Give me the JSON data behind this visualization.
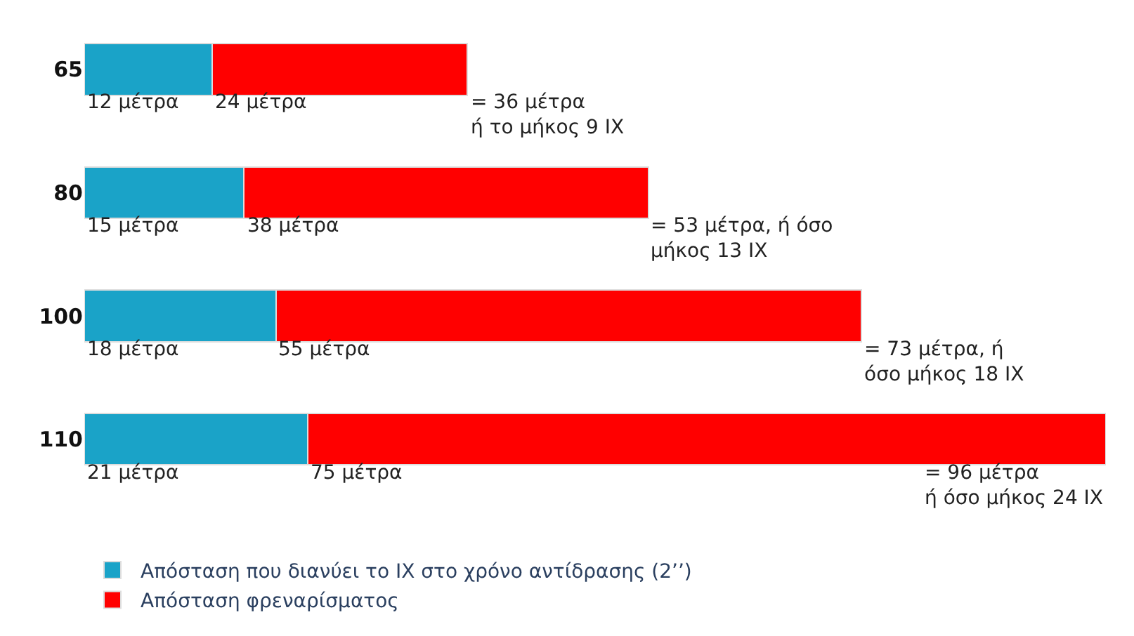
{
  "chart_data": {
    "type": "bar",
    "orientation": "horizontal",
    "stacked": true,
    "categories": [
      "65",
      "80",
      "100",
      "110"
    ],
    "series": [
      {
        "name": "Απόσταση που διανύει το ΙΧ στο χρόνο αντίδρασης (2’’)",
        "color": "#1aa3c8",
        "values": [
          12,
          15,
          18,
          21
        ],
        "value_labels": [
          "12 μέτρα",
          "15 μέτρα",
          "18 μέτρα",
          "21 μέτρα"
        ]
      },
      {
        "name": "Απόσταση φρεναρίσματος",
        "color": "#ff0000",
        "values": [
          24,
          38,
          55,
          75
        ],
        "value_labels": [
          "24 μέτρα",
          "38 μέτρα",
          "55 μέτρα",
          "75 μέτρα"
        ]
      }
    ],
    "totals": [
      "= 36 μέτρα\nή το μήκος 9 ΙΧ",
      "= 53 μέτρα, ή όσο\nμήκος 13 ΙΧ",
      "= 73 μέτρα, ή\nόσο μήκος 18 ΙΧ",
      "= 96 μέτρα\nή όσο μήκος 24 ΙΧ"
    ],
    "legend": "bottom left"
  }
}
